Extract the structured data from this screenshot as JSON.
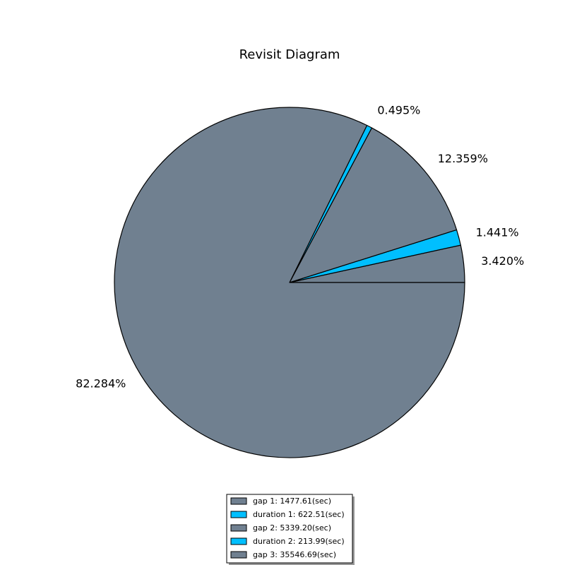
{
  "chart_data": {
    "type": "pie",
    "title": "Revisit Diagram",
    "start_angle_deg": 0,
    "direction": "counterclockwise",
    "slices": [
      {
        "label": "gap 1: 1477.61(sec)",
        "value": 1477.61,
        "pct_label": "3.420%",
        "color": "#708090"
      },
      {
        "label": "duration 1: 622.51(sec)",
        "value": 622.51,
        "pct_label": "1.441%",
        "color": "#00BFFF"
      },
      {
        "label": "gap 2: 5339.20(sec)",
        "value": 5339.2,
        "pct_label": "12.359%",
        "color": "#708090"
      },
      {
        "label": "duration 2: 213.99(sec)",
        "value": 213.99,
        "pct_label": "0.495%",
        "color": "#00BFFF"
      },
      {
        "label": "gap 3: 35546.69(sec)",
        "value": 35546.69,
        "pct_label": "82.284%",
        "color": "#708090"
      }
    ],
    "legend_position": "bottom-center",
    "edge_color": "#000000"
  }
}
